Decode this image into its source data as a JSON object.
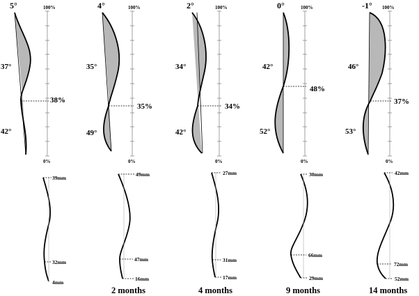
{
  "panels": [
    {
      "id": "p1",
      "top_angle": "5°",
      "scale_top": "100%",
      "scale_bottom": "0%",
      "upper_angle": "37°",
      "lower_angle": "42°",
      "inflection_pct": "38%",
      "mm_top": "39mm",
      "mm_mid": "32mm",
      "mm_bottom": "4mm",
      "month_label": ""
    },
    {
      "id": "p2",
      "top_angle": "4°",
      "scale_top": "100%",
      "scale_bottom": "0%",
      "upper_angle": "35°",
      "lower_angle": "49°",
      "inflection_pct": "35%",
      "mm_top": "49mm",
      "mm_mid": "47mm",
      "mm_bottom": "16mm",
      "month_label": "2 months"
    },
    {
      "id": "p3",
      "top_angle": "2°",
      "scale_top": "100%",
      "scale_bottom": "0%",
      "upper_angle": "34°",
      "lower_angle": "42°",
      "inflection_pct": "34%",
      "mm_top": "27mm",
      "mm_mid": "31mm",
      "mm_bottom": "17mm",
      "month_label": "4 months"
    },
    {
      "id": "p4",
      "top_angle": "0°",
      "scale_top": "100%",
      "scale_bottom": "0%",
      "upper_angle": "42°",
      "lower_angle": "52°",
      "inflection_pct": "48%",
      "mm_top": "30mm",
      "mm_mid": "66mm",
      "mm_bottom": "29mm",
      "month_label": "9 months"
    },
    {
      "id": "p5",
      "top_angle": "-1°",
      "scale_top": "100%",
      "scale_bottom": "0%",
      "upper_angle": "46°",
      "lower_angle": "53°",
      "inflection_pct": "37%",
      "mm_top": "42mm",
      "mm_mid": "72mm",
      "mm_bottom": "52mm",
      "month_label": "14 months"
    }
  ],
  "colors": {
    "fill": "#b8b8b8",
    "stroke": "#000000",
    "scale_line": "#888888"
  }
}
